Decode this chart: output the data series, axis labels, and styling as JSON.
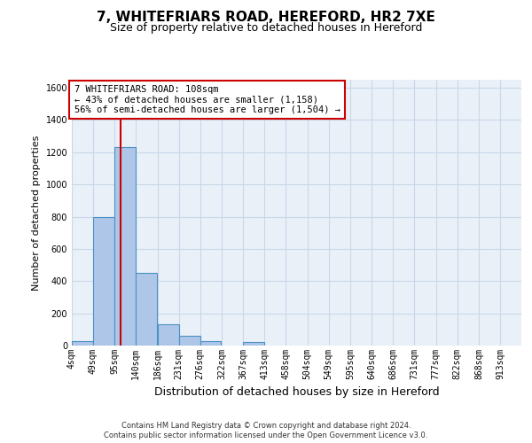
{
  "title1": "7, WHITEFRIARS ROAD, HEREFORD, HR2 7XE",
  "title2": "Size of property relative to detached houses in Hereford",
  "xlabel": "Distribution of detached houses by size in Hereford",
  "ylabel": "Number of detached properties",
  "footer1": "Contains HM Land Registry data © Crown copyright and database right 2024.",
  "footer2": "Contains public sector information licensed under the Open Government Licence v3.0.",
  "bin_labels": [
    "4sqm",
    "49sqm",
    "95sqm",
    "140sqm",
    "186sqm",
    "231sqm",
    "276sqm",
    "322sqm",
    "367sqm",
    "413sqm",
    "458sqm",
    "504sqm",
    "549sqm",
    "595sqm",
    "640sqm",
    "686sqm",
    "731sqm",
    "777sqm",
    "822sqm",
    "868sqm",
    "913sqm"
  ],
  "bin_edges": [
    4,
    49,
    95,
    140,
    186,
    231,
    276,
    322,
    367,
    413,
    458,
    504,
    549,
    595,
    640,
    686,
    731,
    777,
    822,
    868,
    913
  ],
  "bar_heights": [
    30,
    800,
    1230,
    450,
    130,
    60,
    30,
    0,
    20,
    0,
    0,
    0,
    0,
    0,
    0,
    0,
    0,
    0,
    0,
    0
  ],
  "bar_color": "#aec6e8",
  "bar_edge_color": "#4a90c4",
  "property_line_x": 108,
  "property_label": "7 WHITEFRIARS ROAD: 108sqm",
  "annotation_line1": "← 43% of detached houses are smaller (1,158)",
  "annotation_line2": "56% of semi-detached houses are larger (1,504) →",
  "ylim": [
    0,
    1650
  ],
  "yticks": [
    0,
    200,
    400,
    600,
    800,
    1000,
    1200,
    1400,
    1600
  ],
  "annotation_box_color": "#ffffff",
  "annotation_box_edge": "#cc0000",
  "red_line_color": "#cc0000",
  "grid_color": "#c8d8e8",
  "bg_color": "#eaf0f8",
  "title1_fontsize": 11,
  "title2_fontsize": 9,
  "ylabel_fontsize": 8,
  "xlabel_fontsize": 9,
  "tick_fontsize": 7,
  "footer_fontsize": 6,
  "annot_fontsize": 7.5
}
